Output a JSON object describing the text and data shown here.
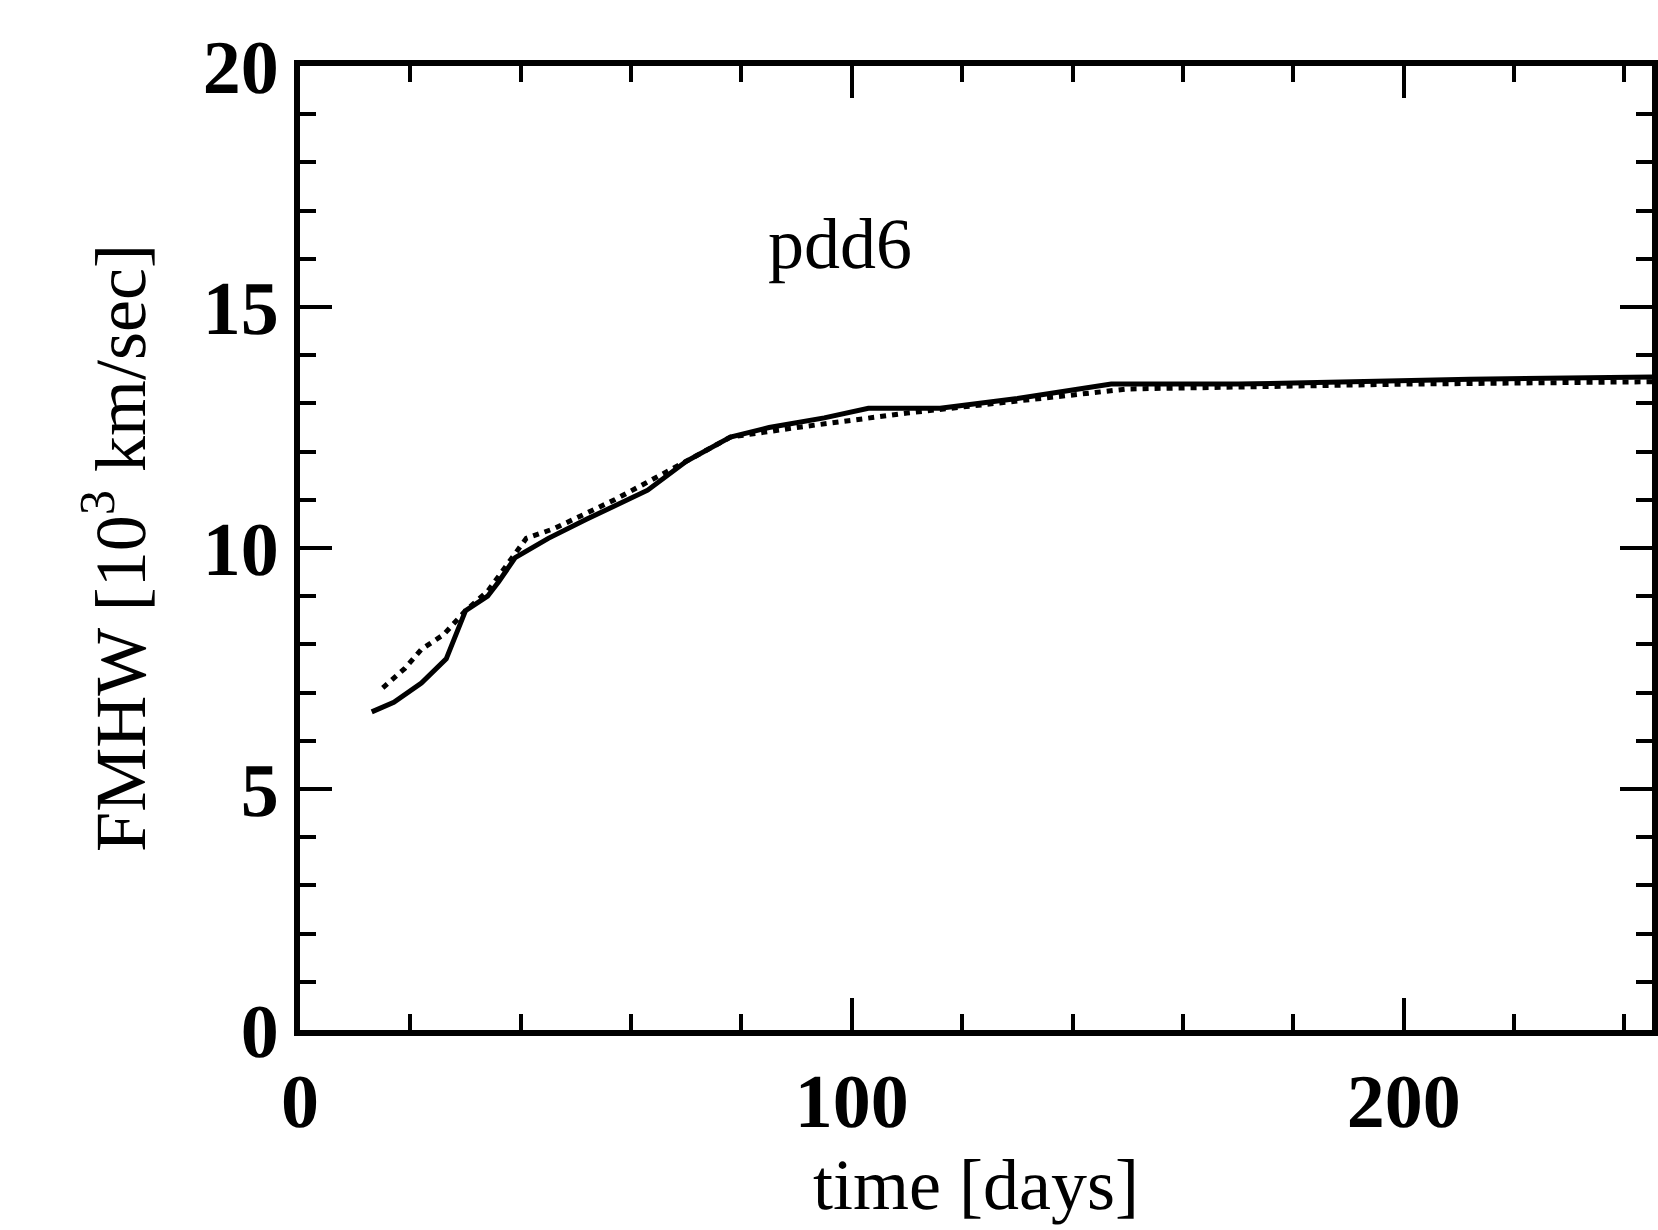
{
  "chart_data": {
    "type": "line",
    "xlabel": "time [days]",
    "ylabel": "FMHW [10$^{3}$ km/sec]",
    "annotations": [
      "pdd6"
    ],
    "xlim": [
      0,
      245
    ],
    "xticks": [
      0,
      100,
      200
    ],
    "ylim": [
      0,
      20
    ],
    "yticks": [
      0,
      5,
      10,
      15,
      20
    ],
    "grid": false,
    "series": [
      {
        "color": "#000000",
        "line_style": "solid",
        "x": [
          13,
          17,
          22,
          26.5,
          30,
          34,
          36,
          39,
          45,
          52,
          63,
          70,
          78,
          85,
          95,
          103,
          116,
          130,
          147,
          170,
          212,
          245
        ],
        "values": [
          6.6,
          6.8,
          7.2,
          7.7,
          8.7,
          9.0,
          9.3,
          9.8,
          10.2,
          10.6,
          11.2,
          11.8,
          12.3,
          12.5,
          12.7,
          12.9,
          12.9,
          13.1,
          13.4,
          13.4,
          13.5,
          13.55
        ]
      },
      {
        "color": "#000000",
        "line_style": "dotted",
        "x": [
          15,
          19,
          22,
          26,
          30,
          34,
          41,
          46,
          57,
          70,
          78,
          90,
          110,
          150,
          200,
          245
        ],
        "values": [
          7.1,
          7.5,
          7.9,
          8.2,
          8.7,
          9.1,
          10.2,
          10.4,
          11.0,
          11.8,
          12.3,
          12.5,
          12.8,
          13.3,
          13.4,
          13.45
        ]
      }
    ]
  }
}
